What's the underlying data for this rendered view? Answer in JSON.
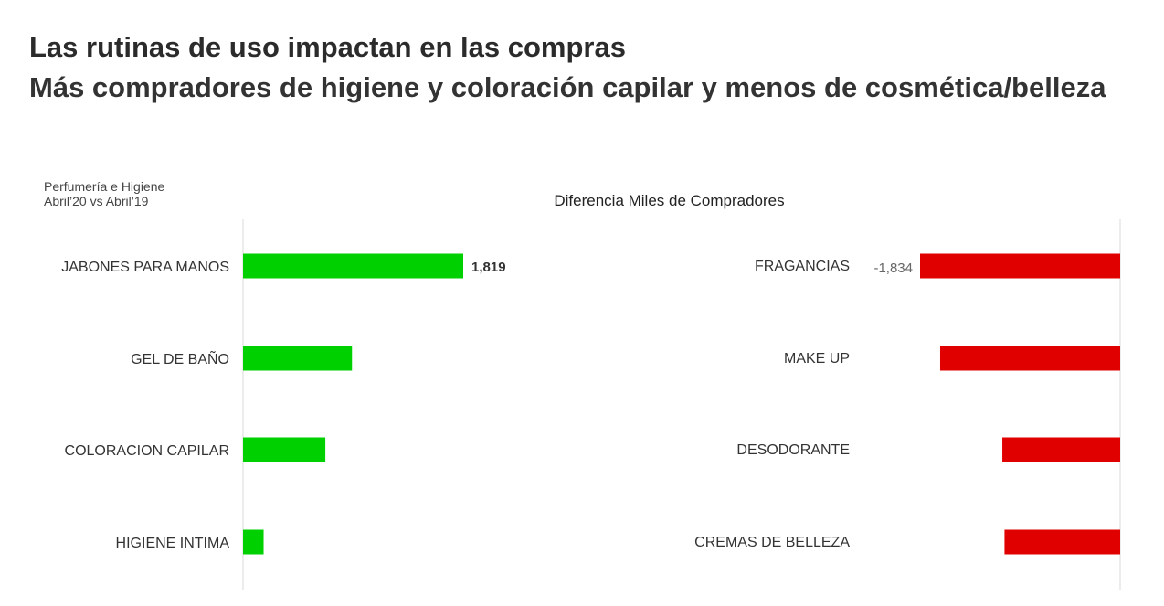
{
  "header": {
    "title": "Las rutinas de uso impactan en las compras",
    "subtitle": "Más compradores de higiene y coloración capilar y menos de cosmética/belleza"
  },
  "note": {
    "line1": "Perfumería e Higiene",
    "line2": "Abril’20 vs Abril’19"
  },
  "colors": {
    "positive": "#00d000",
    "negative": "#e00000",
    "axis": "#d9d9d9",
    "label": "#333333"
  },
  "chart_data": [
    {
      "type": "bar",
      "orientation": "horizontal",
      "categories": [
        "JABONES PARA MANOS",
        "GEL DE BAÑO",
        "COLORACION CAPILAR",
        "HIGIENE INTIMA"
      ],
      "values": [
        1819,
        900,
        680,
        170
      ],
      "data_labels": [
        "1,819",
        "",
        "",
        ""
      ],
      "title": "Diferencia Miles de Compradores",
      "xlim": [
        0,
        1819
      ],
      "grid": false,
      "color": "#00d000"
    },
    {
      "type": "bar",
      "orientation": "horizontal",
      "categories": [
        "FRAGANCIAS",
        "MAKE UP",
        "DESODORANTE",
        "CREMAS DE BELLEZA"
      ],
      "values": [
        -1834,
        -1650,
        -1080,
        -1060
      ],
      "data_labels": [
        "-1,834",
        "",
        "",
        ""
      ],
      "xlim": [
        -1834,
        0
      ],
      "grid": false,
      "color": "#e00000"
    }
  ]
}
